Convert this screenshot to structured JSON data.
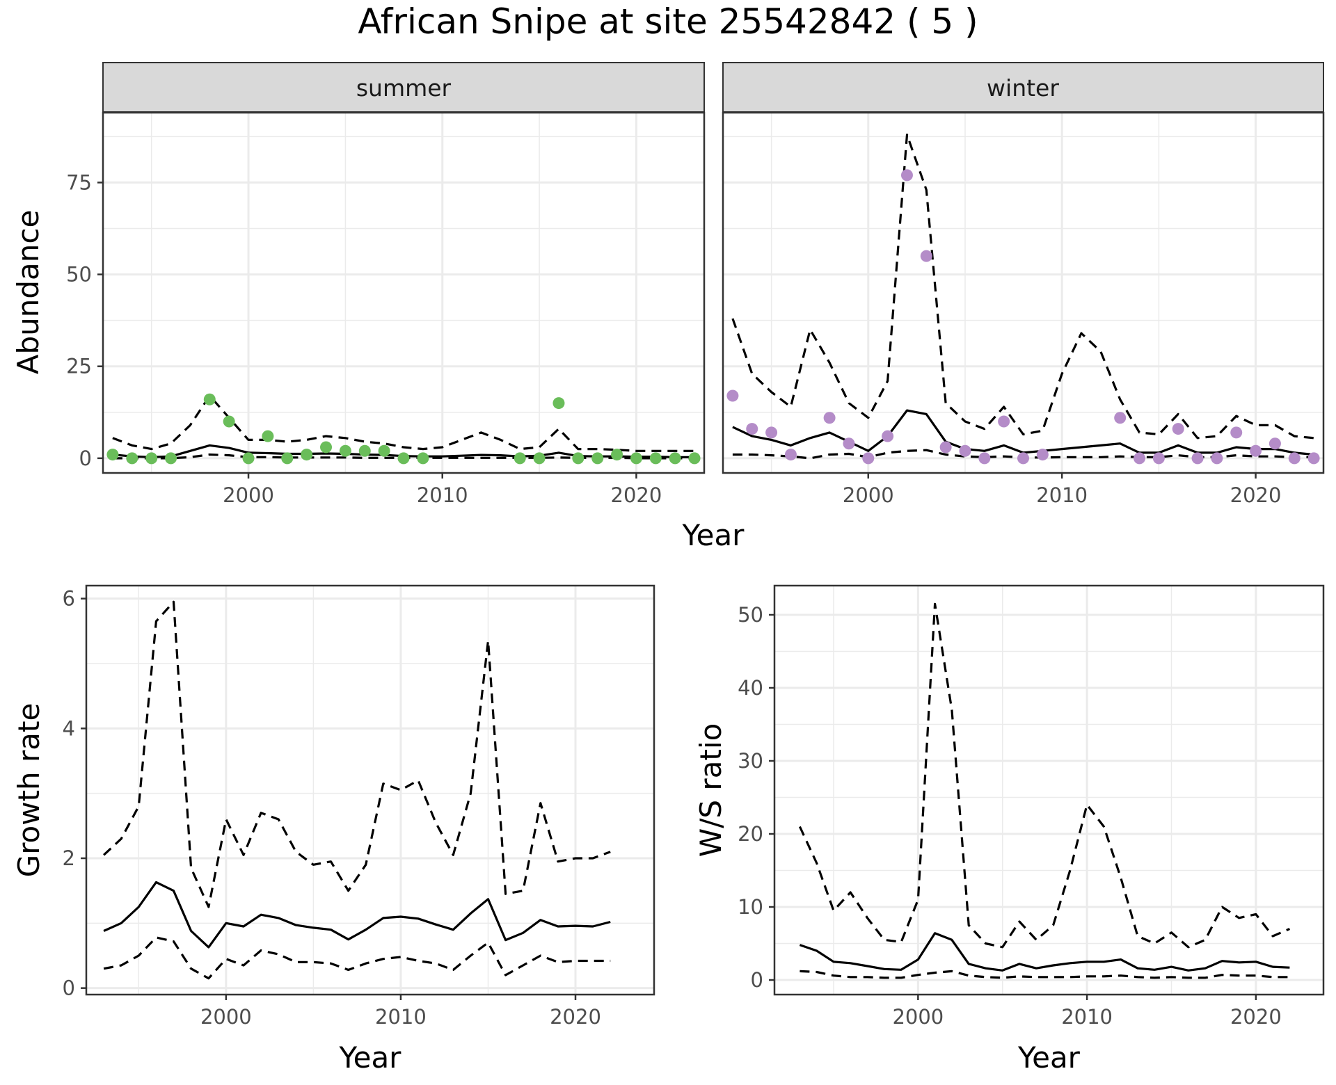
{
  "title": "African Snipe at site 25542842 ( 5 )",
  "colors": {
    "summer_points": "#6ABD5A",
    "winter_points": "#B48CC8",
    "lines": "#000000",
    "strip_fill": "#D9D9D9",
    "grid": "#EBEBEB"
  },
  "chart_data": [
    {
      "type": "line",
      "facet": "summer",
      "xlabel": "Year",
      "ylabel": "Abundance",
      "xlim": [
        1992.5,
        2023.5
      ],
      "ylim": [
        -4,
        94
      ],
      "xticks": [
        2000,
        2010,
        2020
      ],
      "yticks": [
        0,
        25,
        50,
        75
      ],
      "grid": true,
      "observed_points": {
        "x": [
          1993,
          1994,
          1995,
          1996,
          1998,
          1999,
          2000,
          2001,
          2002,
          2003,
          2004,
          2005,
          2006,
          2007,
          2008,
          2009,
          2014,
          2015,
          2016,
          2017,
          2018,
          2019,
          2020,
          2021,
          2022,
          2023
        ],
        "y": [
          1,
          0,
          0,
          0,
          16,
          10,
          0,
          6,
          0,
          1,
          3,
          2,
          2,
          2,
          0,
          0,
          0,
          0,
          15,
          0,
          0,
          1,
          0,
          0,
          0,
          0
        ]
      },
      "series": [
        {
          "style": "solid",
          "x": [
            1993,
            1994,
            1995,
            1996,
            1997,
            1998,
            1999,
            2000,
            2001,
            2002,
            2003,
            2004,
            2005,
            2006,
            2007,
            2008,
            2009,
            2010,
            2011,
            2012,
            2013,
            2014,
            2015,
            2016,
            2017,
            2018,
            2019,
            2020,
            2021,
            2022,
            2023
          ],
          "y": [
            1,
            0.5,
            0.3,
            0.5,
            2,
            3.5,
            2.8,
            1.5,
            1.4,
            1.2,
            1.2,
            1.3,
            1.2,
            1,
            0.9,
            0.6,
            0.5,
            0.5,
            0.7,
            0.9,
            0.8,
            0.5,
            0.7,
            1.5,
            0.6,
            0.5,
            0.5,
            0.4,
            0.4,
            0.3,
            0.3
          ]
        },
        {
          "style": "dashed",
          "x": [
            1993,
            1994,
            1995,
            1996,
            1997,
            1998,
            1999,
            2000,
            2001,
            2002,
            2003,
            2004,
            2005,
            2006,
            2007,
            2008,
            2009,
            2010,
            2011,
            2012,
            2013,
            2014,
            2015,
            2016,
            2017,
            2018,
            2019,
            2020,
            2021,
            2022,
            2023
          ],
          "y": [
            5.5,
            3.5,
            2.5,
            4,
            9,
            17,
            11,
            5,
            5,
            4.5,
            5,
            6,
            5.5,
            4.5,
            4,
            3,
            2.5,
            3,
            5,
            7,
            5,
            2.5,
            3,
            8,
            2.5,
            2.5,
            2.3,
            2,
            2,
            2,
            2
          ]
        },
        {
          "style": "dashed",
          "x": [
            1993,
            1994,
            1995,
            1996,
            1997,
            1998,
            1999,
            2000,
            2001,
            2002,
            2003,
            2004,
            2005,
            2006,
            2007,
            2008,
            2009,
            2010,
            2011,
            2012,
            2013,
            2014,
            2015,
            2016,
            2017,
            2018,
            2019,
            2020,
            2021,
            2022,
            2023
          ],
          "y": [
            0,
            0,
            0,
            0,
            0.3,
            1,
            0.8,
            0.3,
            0.3,
            0.2,
            0.2,
            0.2,
            0.2,
            0.1,
            0.1,
            0.1,
            0.1,
            0.1,
            0.1,
            0.1,
            0.1,
            0.1,
            0.1,
            0.2,
            0.1,
            0.1,
            0.1,
            0,
            0,
            0,
            0
          ]
        }
      ]
    },
    {
      "type": "line",
      "facet": "winter",
      "xlabel": "Year",
      "ylabel": "Abundance",
      "xlim": [
        1992.5,
        2023.5
      ],
      "ylim": [
        -4,
        94
      ],
      "xticks": [
        2000,
        2010,
        2020
      ],
      "yticks": [
        0,
        25,
        50,
        75
      ],
      "grid": true,
      "observed_points": {
        "x": [
          1993,
          1994,
          1995,
          1996,
          1998,
          1999,
          2000,
          2001,
          2002,
          2003,
          2004,
          2005,
          2006,
          2007,
          2008,
          2009,
          2013,
          2014,
          2015,
          2016,
          2017,
          2018,
          2019,
          2020,
          2021,
          2022,
          2023
        ],
        "y": [
          17,
          8,
          7,
          1,
          11,
          4,
          0,
          6,
          77,
          55,
          3,
          2,
          0,
          10,
          0,
          1,
          11,
          0,
          0,
          8,
          0,
          0,
          7,
          2,
          4,
          0,
          0
        ]
      },
      "series": [
        {
          "style": "solid",
          "x": [
            1993,
            1994,
            1995,
            1996,
            1997,
            1998,
            1999,
            2000,
            2001,
            2002,
            2003,
            2004,
            2005,
            2006,
            2007,
            2008,
            2009,
            2010,
            2011,
            2012,
            2013,
            2014,
            2015,
            2016,
            2017,
            2018,
            2019,
            2020,
            2021,
            2022,
            2023
          ],
          "y": [
            8.5,
            6,
            5,
            3.5,
            5.5,
            7,
            4.5,
            2,
            6,
            13,
            12,
            4.5,
            2.5,
            2,
            3.5,
            1.5,
            2,
            2.5,
            3,
            3.5,
            4,
            1.5,
            1.5,
            3.5,
            1.5,
            1.5,
            3,
            2.5,
            2.5,
            1.5,
            1
          ]
        },
        {
          "style": "dashed",
          "x": [
            1993,
            1994,
            1995,
            1996,
            1997,
            1998,
            1999,
            2000,
            2001,
            2002,
            2003,
            2004,
            2005,
            2006,
            2007,
            2008,
            2009,
            2010,
            2011,
            2012,
            2013,
            2014,
            2015,
            2016,
            2017,
            2018,
            2019,
            2020,
            2021,
            2022,
            2023
          ],
          "y": [
            38,
            23,
            18,
            14,
            35,
            26,
            15,
            11,
            21,
            88,
            73,
            15,
            10,
            8,
            14,
            6.5,
            7.5,
            23,
            34,
            29,
            16,
            7,
            6.5,
            12,
            5.5,
            6,
            11.5,
            9,
            9,
            6,
            5.5
          ]
        },
        {
          "style": "dashed",
          "x": [
            1993,
            1994,
            1995,
            1996,
            1997,
            1998,
            1999,
            2000,
            2001,
            2002,
            2003,
            2004,
            2005,
            2006,
            2007,
            2008,
            2009,
            2010,
            2011,
            2012,
            2013,
            2014,
            2015,
            2016,
            2017,
            2018,
            2019,
            2020,
            2021,
            2022,
            2023
          ],
          "y": [
            1,
            1,
            0.8,
            0.5,
            0,
            1,
            1.2,
            0.3,
            1.5,
            2,
            2.2,
            1,
            0.5,
            0.3,
            0.5,
            0.2,
            0.2,
            0.3,
            0.3,
            0.3,
            0.5,
            0.3,
            0.3,
            0.8,
            0.3,
            0.3,
            0.8,
            0.5,
            0.5,
            0.3,
            0.3
          ]
        }
      ]
    },
    {
      "type": "line",
      "xlabel": "Year",
      "ylabel": "Growth rate",
      "xlim": [
        1992,
        2024.5
      ],
      "ylim": [
        -0.1,
        6.2
      ],
      "xticks": [
        2000,
        2010,
        2020
      ],
      "yticks": [
        0,
        2,
        4,
        6
      ],
      "grid": true,
      "series": [
        {
          "style": "solid",
          "x": [
            1993,
            1994,
            1995,
            1996,
            1997,
            1998,
            1999,
            2000,
            2001,
            2002,
            2003,
            2004,
            2005,
            2006,
            2007,
            2008,
            2009,
            2010,
            2011,
            2012,
            2013,
            2014,
            2015,
            2016,
            2017,
            2018,
            2019,
            2020,
            2021,
            2022
          ],
          "y": [
            0.88,
            1,
            1.25,
            1.63,
            1.5,
            0.88,
            0.63,
            1,
            0.95,
            1.13,
            1.08,
            0.97,
            0.93,
            0.9,
            0.75,
            0.9,
            1.08,
            1.1,
            1.07,
            0.98,
            0.9,
            1.15,
            1.37,
            0.74,
            0.85,
            1.05,
            0.95,
            0.96,
            0.95,
            1.02
          ]
        },
        {
          "style": "dashed",
          "x": [
            1993,
            1994,
            1995,
            1996,
            1997,
            1998,
            1999,
            2000,
            2001,
            2002,
            2003,
            2004,
            2005,
            2006,
            2007,
            2008,
            2009,
            2010,
            2011,
            2012,
            2013,
            2014,
            2015,
            2016,
            2017,
            2018,
            2019,
            2020,
            2021,
            2022
          ],
          "y": [
            2.05,
            2.3,
            2.8,
            5.65,
            5.95,
            1.85,
            1.25,
            2.6,
            2.05,
            2.7,
            2.6,
            2.1,
            1.9,
            1.95,
            1.5,
            1.9,
            3.15,
            3.05,
            3.2,
            2.55,
            2.05,
            3,
            5.35,
            1.45,
            1.5,
            2.85,
            1.95,
            2,
            2,
            2.1
          ]
        },
        {
          "style": "dashed",
          "x": [
            1993,
            1994,
            1995,
            1996,
            1997,
            1998,
            1999,
            2000,
            2001,
            2002,
            2003,
            2004,
            2005,
            2006,
            2007,
            2008,
            2009,
            2010,
            2011,
            2012,
            2013,
            2014,
            2015,
            2016,
            2017,
            2018,
            2019,
            2020,
            2021,
            2022
          ],
          "y": [
            0.3,
            0.35,
            0.5,
            0.78,
            0.72,
            0.3,
            0.15,
            0.45,
            0.35,
            0.58,
            0.52,
            0.4,
            0.4,
            0.38,
            0.28,
            0.38,
            0.45,
            0.48,
            0.42,
            0.38,
            0.28,
            0.5,
            0.7,
            0.2,
            0.35,
            0.5,
            0.4,
            0.42,
            0.42,
            0.42
          ]
        }
      ]
    },
    {
      "type": "line",
      "xlabel": "Year",
      "ylabel": "W/S ratio",
      "xlim": [
        1991.5,
        2024
      ],
      "ylim": [
        -2,
        54
      ],
      "xticks": [
        2000,
        2010,
        2020
      ],
      "yticks": [
        0,
        10,
        20,
        30,
        40,
        50
      ],
      "grid": true,
      "series": [
        {
          "style": "solid",
          "x": [
            1993,
            1994,
            1995,
            1996,
            1997,
            1998,
            1999,
            2000,
            2001,
            2002,
            2003,
            2004,
            2005,
            2006,
            2007,
            2008,
            2009,
            2010,
            2011,
            2012,
            2013,
            2014,
            2015,
            2016,
            2017,
            2018,
            2019,
            2020,
            2021,
            2022
          ],
          "y": [
            4.8,
            4,
            2.5,
            2.3,
            1.9,
            1.5,
            1.4,
            2.8,
            6.4,
            5.5,
            2.2,
            1.6,
            1.3,
            2.2,
            1.6,
            2,
            2.3,
            2.5,
            2.5,
            2.8,
            1.6,
            1.4,
            1.8,
            1.3,
            1.6,
            2.6,
            2.4,
            2.5,
            1.8,
            1.7
          ]
        },
        {
          "style": "dashed",
          "x": [
            1993,
            1994,
            1995,
            1996,
            1997,
            1998,
            1999,
            2000,
            2001,
            2002,
            2003,
            2004,
            2005,
            2006,
            2007,
            2008,
            2009,
            2010,
            2011,
            2012,
            2013,
            2014,
            2015,
            2016,
            2017,
            2018,
            2019,
            2020,
            2021,
            2022
          ],
          "y": [
            21,
            16,
            9.5,
            12,
            8.5,
            5.5,
            5.2,
            11,
            51.5,
            37,
            7.5,
            5,
            4.5,
            8,
            5.5,
            7.5,
            15,
            24,
            21,
            14,
            6,
            5,
            6.5,
            4.5,
            5.5,
            10,
            8.5,
            9,
            6,
            7
          ]
        },
        {
          "style": "dashed",
          "x": [
            1993,
            1994,
            1995,
            1996,
            1997,
            1998,
            1999,
            2000,
            2001,
            2002,
            2003,
            2004,
            2005,
            2006,
            2007,
            2008,
            2009,
            2010,
            2011,
            2012,
            2013,
            2014,
            2015,
            2016,
            2017,
            2018,
            2019,
            2020,
            2021,
            2022
          ],
          "y": [
            1.2,
            1.1,
            0.6,
            0.4,
            0.4,
            0.3,
            0.3,
            0.7,
            1,
            1.2,
            0.6,
            0.4,
            0.3,
            0.5,
            0.4,
            0.4,
            0.4,
            0.5,
            0.5,
            0.6,
            0.4,
            0.3,
            0.4,
            0.3,
            0.3,
            0.7,
            0.6,
            0.6,
            0.4,
            0.4
          ]
        }
      ]
    }
  ],
  "facet_labels": [
    "summer",
    "winter"
  ],
  "top_row_xlabel": "Year",
  "top_row_ylabel": "Abundance",
  "tick_labels": {
    "x": [
      "2000",
      "2010",
      "2020"
    ],
    "abundance_y": [
      "0",
      "25",
      "50",
      "75"
    ],
    "growth_y": [
      "0",
      "2",
      "4",
      "6"
    ],
    "ratio_y": [
      "0",
      "10",
      "20",
      "30",
      "40",
      "50"
    ]
  }
}
